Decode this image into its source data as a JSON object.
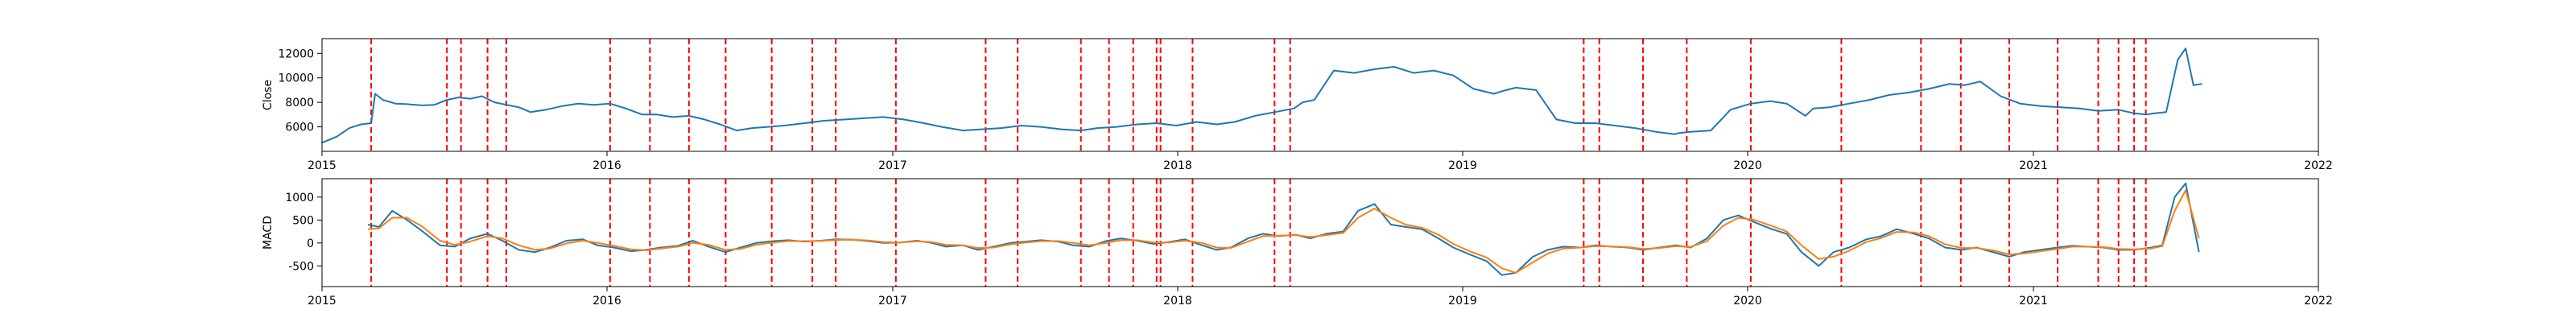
{
  "chart_data": [
    {
      "type": "line",
      "ylabel": "Close",
      "ylim": [
        4000,
        13200
      ],
      "yticks": [
        6000,
        8000,
        10000,
        12000
      ],
      "xlim": [
        "2015-01-01",
        "2022-01-01"
      ],
      "xticks": [
        "2015",
        "2016",
        "2017",
        "2018",
        "2019",
        "2020",
        "2021",
        "2022"
      ],
      "line_color": "#1f77b4",
      "event_line_color": "#ff0000",
      "series": [
        {
          "x": [
            "2015-01-01",
            "2015-01-20",
            "2015-02-05",
            "2015-02-20",
            "2015-03-05",
            "2015-03-10",
            "2015-03-20",
            "2015-04-05",
            "2015-04-20",
            "2015-05-10",
            "2015-05-25",
            "2015-06-10",
            "2015-06-25",
            "2015-07-10",
            "2015-07-25",
            "2015-08-10",
            "2015-08-25",
            "2015-09-10",
            "2015-09-25",
            "2015-10-15",
            "2015-11-05",
            "2015-11-25",
            "2015-12-15",
            "2016-01-05",
            "2016-01-25",
            "2016-02-15",
            "2016-03-05",
            "2016-03-25",
            "2016-04-15",
            "2016-05-05",
            "2016-05-25",
            "2016-06-15",
            "2016-07-05",
            "2016-07-25",
            "2016-08-15",
            "2016-09-10",
            "2016-10-05",
            "2016-11-01",
            "2016-11-25",
            "2016-12-20",
            "2017-01-15",
            "2017-02-10",
            "2017-03-05",
            "2017-04-01",
            "2017-04-25",
            "2017-05-20",
            "2017-06-15",
            "2017-07-10",
            "2017-08-05",
            "2017-08-30",
            "2017-09-20",
            "2017-10-15",
            "2017-11-10",
            "2017-12-05",
            "2017-12-30",
            "2018-01-25",
            "2018-02-20",
            "2018-03-15",
            "2018-04-10",
            "2018-05-05",
            "2018-05-30",
            "2018-06-10",
            "2018-06-25",
            "2018-07-20",
            "2018-08-15",
            "2018-09-10",
            "2018-10-05",
            "2018-10-30",
            "2018-11-25",
            "2018-12-20",
            "2019-01-15",
            "2019-02-10",
            "2019-02-20",
            "2019-03-10",
            "2019-04-05",
            "2019-05-01",
            "2019-05-25",
            "2019-06-20",
            "2019-07-15",
            "2019-08-10",
            "2019-09-05",
            "2019-09-30",
            "2019-10-05",
            "2019-10-20",
            "2019-11-15",
            "2019-12-10",
            "2020-01-05",
            "2020-01-30",
            "2020-02-20",
            "2020-03-15",
            "2020-03-25",
            "2020-04-15",
            "2020-05-10",
            "2020-06-05",
            "2020-06-30",
            "2020-07-25",
            "2020-08-20",
            "2020-09-15",
            "2020-10-05",
            "2020-10-25",
            "2020-11-05",
            "2020-11-20",
            "2020-12-15",
            "2021-01-10",
            "2021-02-05",
            "2021-03-01",
            "2021-03-25",
            "2021-04-20",
            "2021-05-10",
            "2021-05-25",
            "2021-06-05",
            "2021-06-20",
            "2021-07-05",
            "2021-07-15",
            "2021-07-25",
            "2021-08-05"
          ],
          "y": [
            4700,
            5200,
            5900,
            6200,
            6300,
            8700,
            8200,
            7900,
            7850,
            7750,
            7800,
            8200,
            8400,
            8300,
            8500,
            8000,
            7800,
            7600,
            7200,
            7400,
            7700,
            7900,
            7800,
            7900,
            7500,
            7000,
            7000,
            6800,
            6900,
            6600,
            6200,
            5700,
            5900,
            6000,
            6100,
            6300,
            6500,
            6600,
            6700,
            6800,
            6600,
            6300,
            6000,
            5700,
            5800,
            5900,
            6100,
            6000,
            5800,
            5700,
            5900,
            6000,
            6200,
            6300,
            6100,
            6400,
            6200,
            6400,
            6900,
            7200,
            7500,
            8000,
            8200,
            10600,
            10400,
            10700,
            10900,
            10400,
            10600,
            10200,
            9100,
            8700,
            8900,
            9200,
            9000,
            6600,
            6300,
            6300,
            6100,
            5900,
            5600,
            5400,
            5500,
            5600,
            5700,
            7400,
            7900,
            8100,
            7900,
            6900,
            7500,
            7600,
            7900,
            8200,
            8600,
            8800,
            9100,
            9500,
            9400,
            9700,
            9200,
            8500,
            7900,
            7700,
            7600,
            7500,
            7300,
            7400,
            7100,
            7000,
            7100,
            7200,
            11500,
            12400,
            9400,
            9500
          ]
        }
      ]
    },
    {
      "type": "line",
      "ylabel": "MACD",
      "ylim": [
        -950,
        1400
      ],
      "yticks": [
        -500,
        0,
        500,
        1000
      ],
      "xlim": [
        "2015-01-01",
        "2022-01-01"
      ],
      "xticks": [
        "2015",
        "2016",
        "2017",
        "2018",
        "2019",
        "2020",
        "2021",
        "2022"
      ],
      "series": [
        {
          "color": "#1f77b4",
          "x": [
            "2015-03-01",
            "2015-03-15",
            "2015-04-01",
            "2015-04-20",
            "2015-05-10",
            "2015-06-01",
            "2015-06-20",
            "2015-07-10",
            "2015-08-01",
            "2015-08-20",
            "2015-09-10",
            "2015-10-01",
            "2015-10-20",
            "2015-11-10",
            "2015-12-01",
            "2015-12-20",
            "2016-01-10",
            "2016-02-01",
            "2016-02-20",
            "2016-03-10",
            "2016-04-01",
            "2016-04-20",
            "2016-05-10",
            "2016-06-01",
            "2016-06-20",
            "2016-07-10",
            "2016-08-01",
            "2016-08-20",
            "2016-09-10",
            "2016-10-01",
            "2016-10-20",
            "2016-11-10",
            "2016-12-01",
            "2016-12-20",
            "2017-01-10",
            "2017-02-01",
            "2017-02-20",
            "2017-03-10",
            "2017-04-01",
            "2017-04-20",
            "2017-05-10",
            "2017-06-01",
            "2017-06-20",
            "2017-07-10",
            "2017-08-01",
            "2017-08-20",
            "2017-09-10",
            "2017-10-01",
            "2017-10-20",
            "2017-11-10",
            "2017-12-01",
            "2017-12-20",
            "2018-01-10",
            "2018-02-01",
            "2018-02-20",
            "2018-03-10",
            "2018-04-01",
            "2018-04-20",
            "2018-05-10",
            "2018-06-01",
            "2018-06-20",
            "2018-07-10",
            "2018-08-01",
            "2018-08-20",
            "2018-09-10",
            "2018-10-01",
            "2018-10-20",
            "2018-11-10",
            "2018-12-01",
            "2018-12-20",
            "2019-01-10",
            "2019-02-01",
            "2019-02-20",
            "2019-03-10",
            "2019-04-01",
            "2019-04-20",
            "2019-05-10",
            "2019-06-01",
            "2019-06-20",
            "2019-07-10",
            "2019-08-01",
            "2019-08-20",
            "2019-09-10",
            "2019-10-01",
            "2019-10-20",
            "2019-11-10",
            "2019-12-01",
            "2019-12-20",
            "2020-01-10",
            "2020-02-01",
            "2020-02-20",
            "2020-03-10",
            "2020-04-01",
            "2020-04-20",
            "2020-05-10",
            "2020-06-01",
            "2020-06-20",
            "2020-07-10",
            "2020-08-01",
            "2020-08-20",
            "2020-09-10",
            "2020-10-01",
            "2020-10-20",
            "2020-11-10",
            "2020-12-01",
            "2020-12-20",
            "2021-01-10",
            "2021-02-01",
            "2021-02-20",
            "2021-03-10",
            "2021-04-01",
            "2021-04-20",
            "2021-05-10",
            "2021-06-01",
            "2021-06-15",
            "2021-07-01",
            "2021-07-15",
            "2021-08-01"
          ],
          "y": [
            400,
            350,
            700,
            500,
            250,
            -50,
            -80,
            100,
            200,
            50,
            -150,
            -200,
            -100,
            50,
            80,
            -50,
            -100,
            -180,
            -150,
            -100,
            -60,
            50,
            -80,
            -200,
            -100,
            0,
            40,
            60,
            30,
            50,
            80,
            70,
            40,
            0,
            10,
            50,
            0,
            -80,
            -50,
            -150,
            -80,
            0,
            30,
            60,
            30,
            -50,
            -80,
            40,
            100,
            50,
            -20,
            20,
            80,
            -50,
            -150,
            -100,
            100,
            200,
            150,
            180,
            100,
            200,
            250,
            700,
            850,
            400,
            350,
            300,
            100,
            -100,
            -250,
            -400,
            -700,
            -650,
            -300,
            -150,
            -80,
            -100,
            -50,
            -80,
            -100,
            -150,
            -100,
            -50,
            -100,
            100,
            500,
            600,
            450,
            300,
            200,
            -200,
            -500,
            -200,
            -100,
            80,
            150,
            300,
            200,
            100,
            -100,
            -150,
            -100,
            -200,
            -300,
            -200,
            -150,
            -100,
            -60,
            -80,
            -100,
            -150,
            -150,
            -100,
            -50,
            1000,
            1300,
            -200
          ]
        },
        {
          "color": "#ff7f0e",
          "x": [
            "2015-03-01",
            "2015-03-15",
            "2015-04-01",
            "2015-04-20",
            "2015-05-10",
            "2015-06-01",
            "2015-06-20",
            "2015-07-10",
            "2015-08-01",
            "2015-08-20",
            "2015-09-10",
            "2015-10-01",
            "2015-10-20",
            "2015-11-10",
            "2015-12-01",
            "2015-12-20",
            "2016-01-10",
            "2016-02-01",
            "2016-02-20",
            "2016-03-10",
            "2016-04-01",
            "2016-04-20",
            "2016-05-10",
            "2016-06-01",
            "2016-06-20",
            "2016-07-10",
            "2016-08-01",
            "2016-08-20",
            "2016-09-10",
            "2016-10-01",
            "2016-10-20",
            "2016-11-10",
            "2016-12-01",
            "2016-12-20",
            "2017-01-10",
            "2017-02-01",
            "2017-02-20",
            "2017-03-10",
            "2017-04-01",
            "2017-04-20",
            "2017-05-10",
            "2017-06-01",
            "2017-06-20",
            "2017-07-10",
            "2017-08-01",
            "2017-08-20",
            "2017-09-10",
            "2017-10-01",
            "2017-10-20",
            "2017-11-10",
            "2017-12-01",
            "2017-12-20",
            "2018-01-10",
            "2018-02-01",
            "2018-02-20",
            "2018-03-10",
            "2018-04-01",
            "2018-04-20",
            "2018-05-10",
            "2018-06-01",
            "2018-06-20",
            "2018-07-10",
            "2018-08-01",
            "2018-08-20",
            "2018-09-10",
            "2018-10-01",
            "2018-10-20",
            "2018-11-10",
            "2018-12-01",
            "2018-12-20",
            "2019-01-10",
            "2019-02-01",
            "2019-02-20",
            "2019-03-10",
            "2019-04-01",
            "2019-04-20",
            "2019-05-10",
            "2019-06-01",
            "2019-06-20",
            "2019-07-10",
            "2019-08-01",
            "2019-08-20",
            "2019-09-10",
            "2019-10-01",
            "2019-10-20",
            "2019-11-10",
            "2019-12-01",
            "2019-12-20",
            "2020-01-10",
            "2020-02-01",
            "2020-02-20",
            "2020-03-10",
            "2020-04-01",
            "2020-04-20",
            "2020-05-10",
            "2020-06-01",
            "2020-06-20",
            "2020-07-10",
            "2020-08-01",
            "2020-08-20",
            "2020-09-10",
            "2020-10-01",
            "2020-10-20",
            "2020-11-10",
            "2020-12-01",
            "2020-12-20",
            "2021-01-10",
            "2021-02-01",
            "2021-02-20",
            "2021-03-10",
            "2021-04-01",
            "2021-04-20",
            "2021-05-10",
            "2021-06-01",
            "2021-06-15",
            "2021-07-01",
            "2021-07-15",
            "2021-08-01"
          ],
          "y": [
            300,
            320,
            550,
            550,
            350,
            50,
            -40,
            30,
            150,
            100,
            -50,
            -150,
            -120,
            -10,
            50,
            0,
            -60,
            -140,
            -160,
            -120,
            -80,
            0,
            -40,
            -150,
            -130,
            -40,
            10,
            40,
            40,
            45,
            65,
            70,
            55,
            20,
            10,
            35,
            20,
            -40,
            -50,
            -110,
            -100,
            -30,
            10,
            40,
            40,
            0,
            -50,
            0,
            60,
            60,
            10,
            10,
            50,
            0,
            -100,
            -110,
            30,
            150,
            160,
            170,
            130,
            170,
            220,
            550,
            750,
            550,
            400,
            330,
            180,
            -20,
            -180,
            -320,
            -550,
            -650,
            -420,
            -230,
            -120,
            -100,
            -70,
            -75,
            -90,
            -130,
            -110,
            -70,
            -85,
            40,
            380,
            550,
            500,
            370,
            250,
            -50,
            -350,
            -300,
            -170,
            20,
            110,
            240,
            230,
            150,
            -30,
            -110,
            -110,
            -160,
            -250,
            -230,
            -180,
            -130,
            -80,
            -80,
            -90,
            -130,
            -140,
            -120,
            -70,
            700,
            1150,
            100
          ]
        }
      ]
    }
  ],
  "event_dates": [
    "2015-03-05",
    "2015-06-10",
    "2015-06-28",
    "2015-08-01",
    "2015-08-25",
    "2016-01-05",
    "2016-02-25",
    "2016-04-15",
    "2016-06-01",
    "2016-07-30",
    "2016-09-20",
    "2016-10-20",
    "2017-01-05",
    "2017-04-30",
    "2017-06-10",
    "2017-08-30",
    "2017-10-05",
    "2017-11-05",
    "2017-12-05",
    "2017-12-10",
    "2018-01-20",
    "2018-05-05",
    "2018-05-25",
    "2019-06-05",
    "2019-06-25",
    "2019-08-20",
    "2019-10-15",
    "2020-01-05",
    "2020-04-30",
    "2020-08-10",
    "2020-09-30",
    "2020-12-01",
    "2021-02-01",
    "2021-03-25",
    "2021-04-20",
    "2021-05-10",
    "2021-05-25"
  ]
}
